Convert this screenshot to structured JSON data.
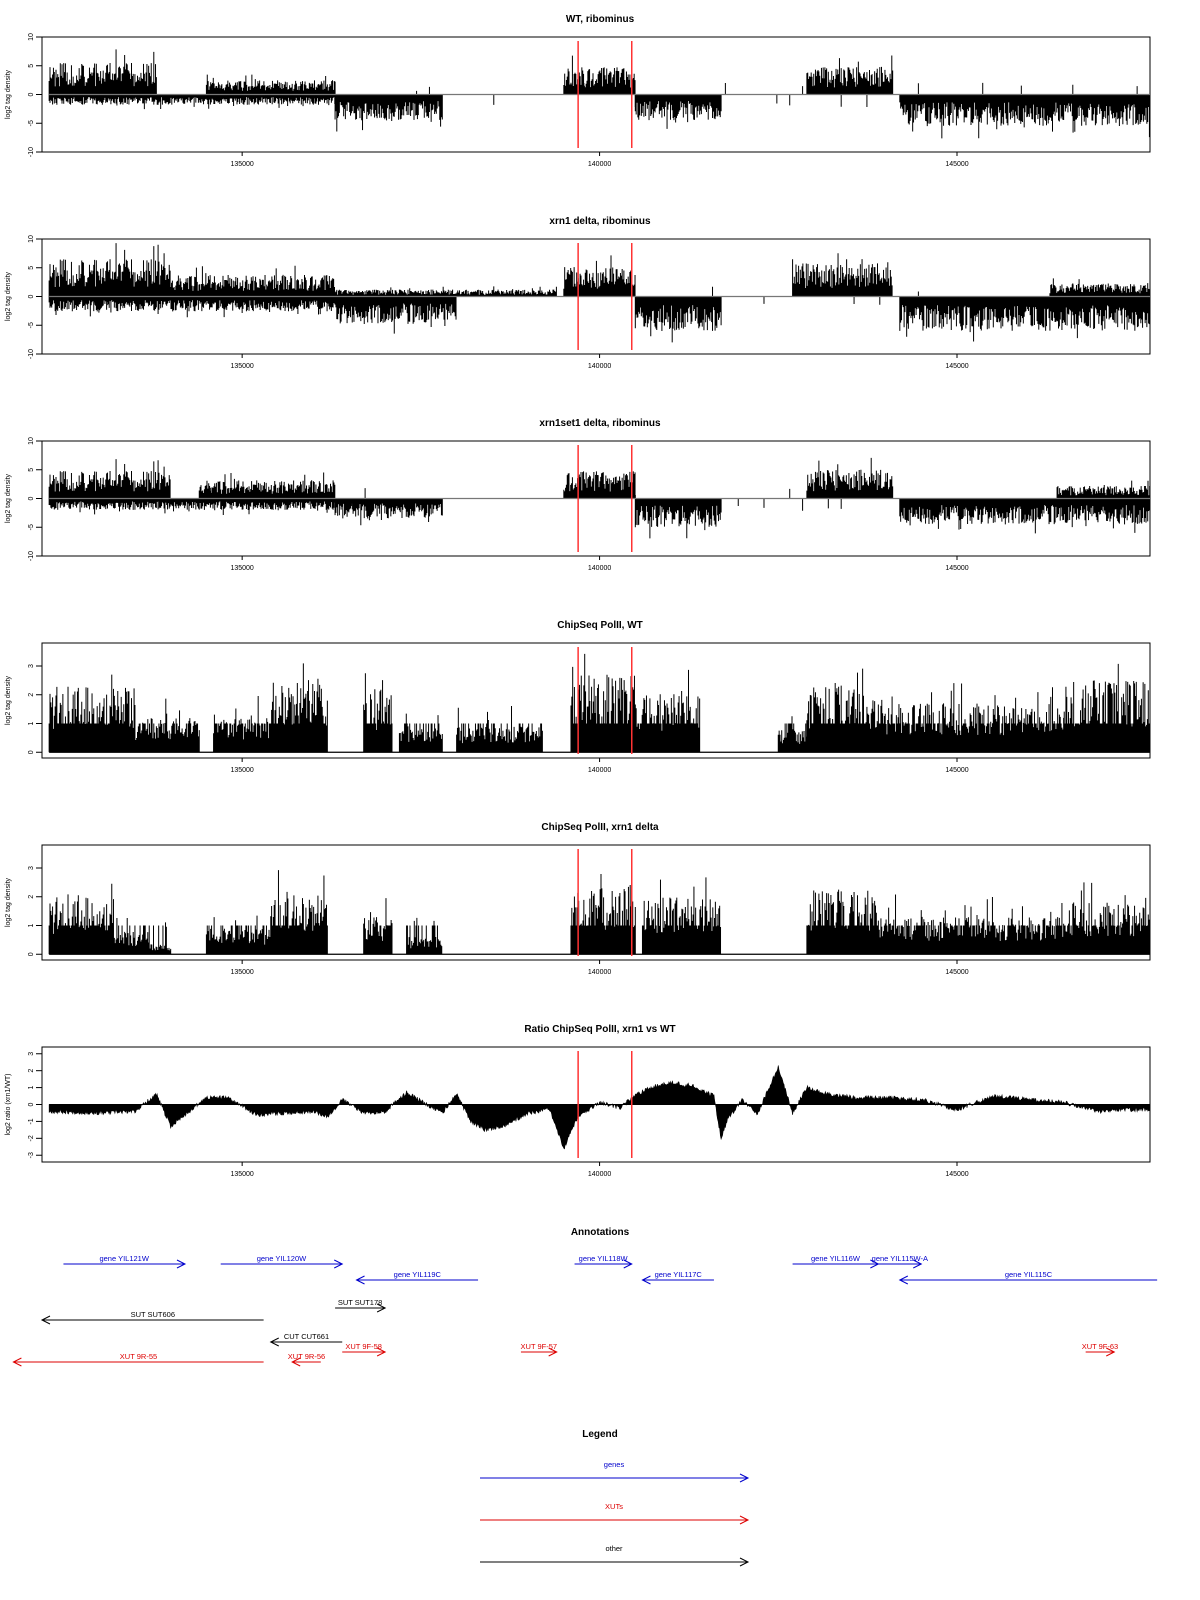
{
  "chart_data": [
    {
      "type": "bar",
      "title": "WT, ribominus",
      "ylabel": "log2 tag density",
      "ylim": [
        -10,
        10
      ],
      "yticks": [
        -10,
        -5,
        0,
        5,
        10
      ],
      "xlim": [
        132200,
        147700
      ],
      "xticks": [
        135000,
        140000,
        145000
      ],
      "markers": [
        139700,
        140450
      ],
      "profile": {
        "pos": [
          {
            "start": 132300,
            "end": 133800,
            "amp": 5.5
          },
          {
            "start": 134500,
            "end": 136300,
            "amp": 2.5
          },
          {
            "start": 139500,
            "end": 140500,
            "amp": 4.8
          },
          {
            "start": 142900,
            "end": 144100,
            "amp": 4.8
          }
        ],
        "neg": [
          {
            "start": 132300,
            "end": 136300,
            "amp": 1.8
          },
          {
            "start": 136300,
            "end": 137800,
            "amp": 4.5
          },
          {
            "start": 140500,
            "end": 141700,
            "amp": 4.5
          },
          {
            "start": 144200,
            "end": 147700,
            "amp": 5.5
          }
        ],
        "seed": 11
      }
    },
    {
      "type": "bar",
      "title": "xrn1 delta, ribominus",
      "ylabel": "log2 tag density",
      "ylim": [
        -10,
        10
      ],
      "yticks": [
        -10,
        -5,
        0,
        5,
        10
      ],
      "xlim": [
        132200,
        147700
      ],
      "xticks": [
        135000,
        140000,
        145000
      ],
      "markers": [
        139700,
        140450
      ],
      "profile": {
        "pos": [
          {
            "start": 132300,
            "end": 134000,
            "amp": 6.5
          },
          {
            "start": 134000,
            "end": 136300,
            "amp": 3.8
          },
          {
            "start": 136300,
            "end": 139400,
            "amp": 1.2
          },
          {
            "start": 139500,
            "end": 140500,
            "amp": 5.2
          },
          {
            "start": 142700,
            "end": 144100,
            "amp": 5.8
          },
          {
            "start": 146300,
            "end": 147700,
            "amp": 2.2
          }
        ],
        "neg": [
          {
            "start": 132300,
            "end": 136300,
            "amp": 2.6
          },
          {
            "start": 136300,
            "end": 138000,
            "amp": 4.8
          },
          {
            "start": 140500,
            "end": 141700,
            "amp": 6.0
          },
          {
            "start": 144200,
            "end": 147700,
            "amp": 6.0
          }
        ],
        "seed": 23
      }
    },
    {
      "type": "bar",
      "title": "xrn1set1 delta, ribominus",
      "ylabel": "log2 tag density",
      "ylim": [
        -10,
        10
      ],
      "yticks": [
        -10,
        -5,
        0,
        5,
        10
      ],
      "xlim": [
        132200,
        147700
      ],
      "xticks": [
        135000,
        140000,
        145000
      ],
      "markers": [
        139700,
        140450
      ],
      "profile": {
        "pos": [
          {
            "start": 132300,
            "end": 134000,
            "amp": 4.8
          },
          {
            "start": 134400,
            "end": 136300,
            "amp": 3.2
          },
          {
            "start": 139500,
            "end": 140500,
            "amp": 4.8
          },
          {
            "start": 142900,
            "end": 144100,
            "amp": 5.0
          },
          {
            "start": 146400,
            "end": 147700,
            "amp": 2.2
          }
        ],
        "neg": [
          {
            "start": 132300,
            "end": 136300,
            "amp": 2.0
          },
          {
            "start": 136300,
            "end": 137800,
            "amp": 3.5
          },
          {
            "start": 140500,
            "end": 141700,
            "amp": 5.0
          },
          {
            "start": 144200,
            "end": 147700,
            "amp": 4.5
          }
        ],
        "seed": 37
      }
    },
    {
      "type": "bar",
      "title": "ChipSeq PolII, WT",
      "ylabel": "log2 tag density",
      "ylim": [
        -0.2,
        3.8
      ],
      "yticks": [
        0,
        1,
        2,
        3
      ],
      "xlim": [
        132200,
        147700
      ],
      "xticks": [
        135000,
        140000,
        145000
      ],
      "markers": [
        139700,
        140450
      ],
      "profile": {
        "pos": [
          {
            "start": 132300,
            "end": 133500,
            "amp": 2.3
          },
          {
            "start": 133500,
            "end": 134400,
            "amp": 1.2
          },
          {
            "start": 134600,
            "end": 135400,
            "amp": 1.2
          },
          {
            "start": 135400,
            "end": 136200,
            "amp": 2.6
          },
          {
            "start": 136700,
            "end": 137100,
            "amp": 2.2
          },
          {
            "start": 137200,
            "end": 137800,
            "amp": 0.9
          },
          {
            "start": 138000,
            "end": 139200,
            "amp": 0.9
          },
          {
            "start": 139600,
            "end": 140500,
            "amp": 2.8
          },
          {
            "start": 140500,
            "end": 141400,
            "amp": 2.1
          },
          {
            "start": 142500,
            "end": 142900,
            "amp": 0.8
          },
          {
            "start": 142900,
            "end": 143900,
            "amp": 2.3
          },
          {
            "start": 143900,
            "end": 146500,
            "amp": 1.7
          },
          {
            "start": 146500,
            "end": 147700,
            "amp": 2.5
          }
        ],
        "neg": [],
        "seed": 41
      }
    },
    {
      "type": "bar",
      "title": "ChipSeq PolII, xrn1 delta",
      "ylabel": "log2 tag density",
      "ylim": [
        -0.2,
        3.8
      ],
      "yticks": [
        0,
        1,
        2,
        3
      ],
      "xlim": [
        132200,
        147700
      ],
      "xticks": [
        135000,
        140000,
        145000
      ],
      "markers": [
        139700,
        140450
      ],
      "profile": {
        "pos": [
          {
            "start": 132300,
            "end": 133200,
            "amp": 2.0
          },
          {
            "start": 133200,
            "end": 133700,
            "amp": 0.8
          },
          {
            "start": 133700,
            "end": 134000,
            "amp": 0.35
          },
          {
            "start": 134500,
            "end": 135400,
            "amp": 0.9
          },
          {
            "start": 135400,
            "end": 136200,
            "amp": 2.2
          },
          {
            "start": 136700,
            "end": 137100,
            "amp": 1.3
          },
          {
            "start": 137300,
            "end": 137800,
            "amp": 0.6
          },
          {
            "start": 139600,
            "end": 140500,
            "amp": 2.4
          },
          {
            "start": 140600,
            "end": 141700,
            "amp": 2.0
          },
          {
            "start": 142900,
            "end": 143900,
            "amp": 2.3
          },
          {
            "start": 143900,
            "end": 146500,
            "amp": 1.3
          },
          {
            "start": 146500,
            "end": 147700,
            "amp": 1.8
          }
        ],
        "neg": [],
        "seed": 53
      }
    },
    {
      "type": "area",
      "title": "Ratio ChipSeq PolII, xrn1 vs WT",
      "ylabel": "log2 ratio (xrn1/WT)",
      "ylim": [
        -3.4,
        3.4
      ],
      "yticks": [
        -3,
        -2,
        -1,
        0,
        1,
        2,
        3
      ],
      "xlim": [
        132200,
        147700
      ],
      "xticks": [
        135000,
        140000,
        145000
      ],
      "markers": [
        139700,
        140450
      ],
      "x": [
        132300,
        133000,
        133500,
        133800,
        134000,
        134200,
        134500,
        134800,
        135200,
        135600,
        136000,
        136200,
        136400,
        136700,
        137000,
        137300,
        137500,
        137800,
        138000,
        138200,
        138400,
        138700,
        139000,
        139300,
        139500,
        139700,
        140000,
        140300,
        140450,
        140700,
        141000,
        141300,
        141600,
        141700,
        141800,
        142000,
        142200,
        142500,
        142700,
        142900,
        143200,
        143600,
        144000,
        144500,
        145000,
        145500,
        146000,
        146500,
        147000,
        147300,
        147700
      ],
      "values": [
        -0.4,
        -0.5,
        -0.4,
        0.6,
        -1.3,
        -0.6,
        0.4,
        0.4,
        -0.6,
        -0.5,
        -0.4,
        -0.7,
        0.3,
        -0.5,
        -0.4,
        0.7,
        0.2,
        -0.5,
        0.6,
        -1.0,
        -1.5,
        -1.2,
        -0.5,
        -0.3,
        -2.6,
        -0.7,
        0.1,
        -0.2,
        0.4,
        1.0,
        1.3,
        1.1,
        0.5,
        -2.0,
        -0.8,
        0.3,
        -0.6,
        2.2,
        -0.5,
        1.0,
        0.6,
        0.4,
        0.4,
        0.3,
        -0.3,
        0.5,
        0.3,
        0.1,
        -0.4,
        -0.3,
        -0.3
      ],
      "seed": 67
    }
  ],
  "annotations": {
    "title": "Annotations",
    "colors": {
      "genes": "#0000cc",
      "xuts": "#dd0000",
      "other": "#000000"
    },
    "items": [
      {
        "label": "gene YIL121W",
        "start": 132500,
        "end": 134200,
        "row": 0,
        "dir": "right",
        "kind": "genes"
      },
      {
        "label": "gene YIL120W",
        "start": 134700,
        "end": 136400,
        "row": 0,
        "dir": "right",
        "kind": "genes"
      },
      {
        "label": "gene YIL119C",
        "start": 136600,
        "end": 138300,
        "row": 1,
        "dir": "left",
        "kind": "genes"
      },
      {
        "label": "gene YIL118W",
        "start": 139650,
        "end": 140450,
        "row": 0,
        "dir": "right",
        "kind": "genes"
      },
      {
        "label": "gene YIL117C",
        "start": 140600,
        "end": 141600,
        "row": 1,
        "dir": "left",
        "kind": "genes"
      },
      {
        "label": "gene YIL116W",
        "start": 142700,
        "end": 143900,
        "row": 0,
        "dir": "right",
        "kind": "genes"
      },
      {
        "label": "gene YIL115W-A",
        "start": 143900,
        "end": 144500,
        "row": 0,
        "dir": "right",
        "kind": "genes"
      },
      {
        "label": "gene YIL115C",
        "start": 144200,
        "end": 147800,
        "row": 1,
        "dir": "left",
        "kind": "genes"
      },
      {
        "label": "SUT SUT178",
        "start": 136300,
        "end": 137000,
        "row": 2,
        "dir": "right",
        "kind": "other"
      },
      {
        "label": "SUT SUT606",
        "start": 132200,
        "end": 135300,
        "row": 3,
        "dir": "left",
        "kind": "other"
      },
      {
        "label": "CUT CUT661",
        "start": 135400,
        "end": 136400,
        "row": 4,
        "dir": "left",
        "kind": "other"
      },
      {
        "label": "XUT 9F-58",
        "start": 136400,
        "end": 137000,
        "row": 5,
        "dir": "right",
        "kind": "xuts"
      },
      {
        "label": "XUT 9F-57",
        "start": 138900,
        "end": 139400,
        "row": 5,
        "dir": "right",
        "kind": "xuts"
      },
      {
        "label": "XUT 9F-63",
        "start": 146800,
        "end": 147200,
        "row": 5,
        "dir": "right",
        "kind": "xuts"
      },
      {
        "label": "XUT 9R-55",
        "start": 131800,
        "end": 135300,
        "row": 6,
        "dir": "left",
        "kind": "xuts"
      },
      {
        "label": "XUT 9R-56",
        "start": 135700,
        "end": 136100,
        "row": 6,
        "dir": "left",
        "kind": "xuts"
      }
    ]
  },
  "legend": {
    "title": "Legend",
    "entries": [
      {
        "label": "genes",
        "color": "#0000cc"
      },
      {
        "label": "XUTs",
        "color": "#dd0000"
      },
      {
        "label": "other",
        "color": "#000000"
      }
    ]
  }
}
